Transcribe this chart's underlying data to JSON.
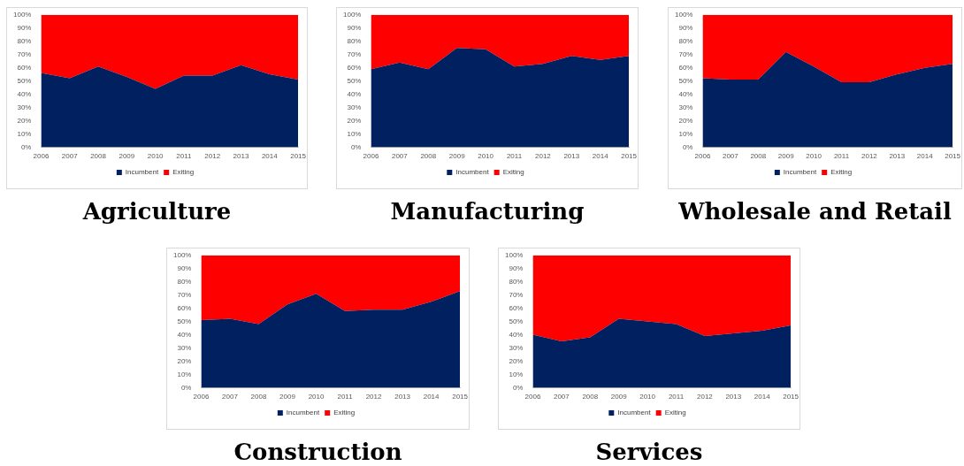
{
  "chart_data": [
    {
      "type": "area",
      "title": "Agriculture",
      "stacked": true,
      "legend": "bottom",
      "grid": false,
      "categories": [
        "2006",
        "2007",
        "2008",
        "2009",
        "2010",
        "2011",
        "2012",
        "2013",
        "2014",
        "2015"
      ],
      "ylim": [
        0,
        100
      ],
      "yticks": [
        {
          "value": 0,
          "label": "0%"
        },
        {
          "value": 10,
          "label": "10%"
        },
        {
          "value": 20,
          "label": "20%"
        },
        {
          "value": 30,
          "label": "30%"
        },
        {
          "value": 40,
          "label": "40%"
        },
        {
          "value": 50,
          "label": "50%"
        },
        {
          "value": 60,
          "label": "60%"
        },
        {
          "value": 70,
          "label": "70%"
        },
        {
          "value": 80,
          "label": "80%"
        },
        {
          "value": 90,
          "label": "90%"
        },
        {
          "value": 100,
          "label": "100%"
        }
      ],
      "series": [
        {
          "name": "Incumbent",
          "color": "#002060",
          "values": [
            56,
            52,
            61,
            53,
            44,
            54,
            54,
            62,
            55,
            51
          ]
        },
        {
          "name": "Exiting",
          "color": "#ff0000",
          "values": [
            44,
            48,
            39,
            47,
            56,
            46,
            46,
            38,
            45,
            49
          ]
        }
      ]
    },
    {
      "type": "area",
      "title": "Manufacturing",
      "stacked": true,
      "legend": "bottom",
      "grid": false,
      "categories": [
        "2006",
        "2007",
        "2008",
        "2009",
        "2010",
        "2011",
        "2012",
        "2013",
        "2014",
        "2015"
      ],
      "ylim": [
        0,
        100
      ],
      "yticks": [
        {
          "value": 0,
          "label": "0%"
        },
        {
          "value": 10,
          "label": "10%"
        },
        {
          "value": 20,
          "label": "20%"
        },
        {
          "value": 30,
          "label": "30%"
        },
        {
          "value": 40,
          "label": "40%"
        },
        {
          "value": 50,
          "label": "50%"
        },
        {
          "value": 60,
          "label": "60%"
        },
        {
          "value": 70,
          "label": "70%"
        },
        {
          "value": 80,
          "label": "80%"
        },
        {
          "value": 90,
          "label": "90%"
        },
        {
          "value": 100,
          "label": "100%"
        }
      ],
      "series": [
        {
          "name": "Incumbent",
          "color": "#002060",
          "values": [
            59,
            64,
            59,
            75,
            74,
            61,
            63,
            69,
            66,
            69
          ]
        },
        {
          "name": "Exiting",
          "color": "#ff0000",
          "values": [
            41,
            36,
            41,
            25,
            26,
            39,
            37,
            31,
            34,
            31
          ]
        }
      ]
    },
    {
      "type": "area",
      "title": "Wholesale and Retail",
      "stacked": true,
      "legend": "bottom",
      "grid": false,
      "categories": [
        "2006",
        "2007",
        "2008",
        "2009",
        "2010",
        "2011",
        "2012",
        "2013",
        "2014",
        "2015"
      ],
      "ylim": [
        0,
        100
      ],
      "yticks": [
        {
          "value": 0,
          "label": "0%"
        },
        {
          "value": 10,
          "label": "10%"
        },
        {
          "value": 20,
          "label": "20%"
        },
        {
          "value": 30,
          "label": "30%"
        },
        {
          "value": 40,
          "label": "40%"
        },
        {
          "value": 50,
          "label": "50%"
        },
        {
          "value": 60,
          "label": "60%"
        },
        {
          "value": 70,
          "label": "70%"
        },
        {
          "value": 80,
          "label": "80%"
        },
        {
          "value": 90,
          "label": "90%"
        },
        {
          "value": 100,
          "label": "100%"
        }
      ],
      "series": [
        {
          "name": "Incumbent",
          "color": "#002060",
          "values": [
            52,
            51,
            51,
            72,
            61,
            49,
            49,
            55,
            60,
            63
          ]
        },
        {
          "name": "Exiting",
          "color": "#ff0000",
          "values": [
            48,
            49,
            49,
            28,
            39,
            51,
            51,
            45,
            40,
            37
          ]
        }
      ]
    },
    {
      "type": "area",
      "title": "Construction",
      "stacked": true,
      "legend": "bottom",
      "grid": false,
      "categories": [
        "2006",
        "2007",
        "2008",
        "2009",
        "2010",
        "2011",
        "2012",
        "2013",
        "2014",
        "2015"
      ],
      "ylim": [
        0,
        100
      ],
      "yticks": [
        {
          "value": 0,
          "label": "0%"
        },
        {
          "value": 10,
          "label": "10%"
        },
        {
          "value": 20,
          "label": "20%"
        },
        {
          "value": 30,
          "label": "30%"
        },
        {
          "value": 40,
          "label": "40%"
        },
        {
          "value": 50,
          "label": "50%"
        },
        {
          "value": 60,
          "label": "60%"
        },
        {
          "value": 70,
          "label": "70%"
        },
        {
          "value": 80,
          "label": "80%"
        },
        {
          "value": 90,
          "label": "90%"
        },
        {
          "value": 100,
          "label": "100%"
        }
      ],
      "series": [
        {
          "name": "Incumbent",
          "color": "#002060",
          "values": [
            51,
            52,
            48,
            63,
            71,
            58,
            59,
            59,
            65,
            73
          ]
        },
        {
          "name": "Exiting",
          "color": "#ff0000",
          "values": [
            49,
            48,
            52,
            37,
            29,
            42,
            41,
            41,
            35,
            27
          ]
        }
      ]
    },
    {
      "type": "area",
      "title": "Services",
      "stacked": true,
      "legend": "bottom",
      "grid": false,
      "categories": [
        "2006",
        "2007",
        "2008",
        "2009",
        "2010",
        "2011",
        "2012",
        "2013",
        "2014",
        "2015"
      ],
      "ylim": [
        0,
        100
      ],
      "yticks": [
        {
          "value": 0,
          "label": "0%"
        },
        {
          "value": 10,
          "label": "10%"
        },
        {
          "value": 20,
          "label": "20%"
        },
        {
          "value": 30,
          "label": "30%"
        },
        {
          "value": 40,
          "label": "40%"
        },
        {
          "value": 50,
          "label": "50%"
        },
        {
          "value": 60,
          "label": "60%"
        },
        {
          "value": 70,
          "label": "70%"
        },
        {
          "value": 80,
          "label": "80%"
        },
        {
          "value": 90,
          "label": "90%"
        },
        {
          "value": 100,
          "label": "100%"
        }
      ],
      "series": [
        {
          "name": "Incumbent",
          "color": "#002060",
          "values": [
            40,
            35,
            38,
            52,
            50,
            48,
            39,
            41,
            43,
            47
          ]
        },
        {
          "name": "Exiting",
          "color": "#ff0000",
          "values": [
            60,
            65,
            62,
            48,
            50,
            52,
            61,
            59,
            57,
            53
          ]
        }
      ]
    }
  ]
}
